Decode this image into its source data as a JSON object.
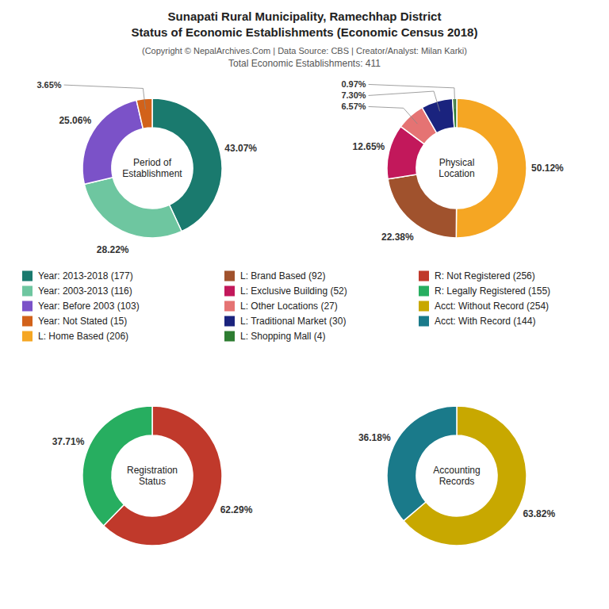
{
  "title": [
    "Sunapati Rural Municipality, Ramechhap District",
    "Status of Economic Establishments (Economic Census 2018)"
  ],
  "subtitle": [
    "(Copyright © NepalArchives.Com | Data Source: CBS | Creator/Analyst: Milan Karki)",
    "Total Economic Establishments: 411"
  ],
  "chart_data": [
    {
      "type": "pie",
      "title": "Period of\nEstablishment",
      "categories": [
        "Year: 2013-2018 (177)",
        "Year: 2003-2013 (116)",
        "Year: Before 2003 (103)",
        "Year: Not Stated (15)"
      ],
      "values": [
        43.07,
        28.22,
        25.06,
        3.65
      ],
      "value_labels": [
        "43.07%",
        "28.22%",
        "25.06%",
        "3.65%"
      ],
      "colors": [
        "#1a7a6e",
        "#6ec6a0",
        "#7b52c8",
        "#d2621a"
      ],
      "data_labels": true,
      "legend": "center"
    },
    {
      "type": "pie",
      "title": "Physical\nLocation",
      "categories": [
        "L: Home Based (206)",
        "L: Brand Based (92)",
        "L: Exclusive Building (52)",
        "L: Other Locations (27)",
        "L: Traditional Market (30)",
        "L: Shopping Mall (4)"
      ],
      "values": [
        50.12,
        22.38,
        12.65,
        6.57,
        7.3,
        0.97
      ],
      "value_labels": [
        "50.12%",
        "22.38%",
        "12.65%",
        "6.57%",
        "7.30%",
        "0.97%"
      ],
      "colors": [
        "#f5a623",
        "#a0522d",
        "#c2185b",
        "#e57373",
        "#1a237e",
        "#2e7d32"
      ],
      "data_labels": true,
      "legend": "center"
    },
    {
      "type": "pie",
      "title": "Registration\nStatus",
      "categories": [
        "R: Not Registered (256)",
        "R: Legally Registered (155)"
      ],
      "values": [
        62.29,
        37.71
      ],
      "value_labels": [
        "62.29%",
        "37.71%"
      ],
      "colors": [
        "#c0392b",
        "#27ae60"
      ],
      "data_labels": true,
      "legend": "center"
    },
    {
      "type": "pie",
      "title": "Accounting\nRecords",
      "categories": [
        "Acct: Without Record (254)",
        "Acct: With Record (144)"
      ],
      "values": [
        63.82,
        36.18
      ],
      "value_labels": [
        "63.82%",
        "36.18%"
      ],
      "colors": [
        "#c8a800",
        "#1a7a8a"
      ],
      "data_labels": true,
      "legend": "center"
    }
  ]
}
